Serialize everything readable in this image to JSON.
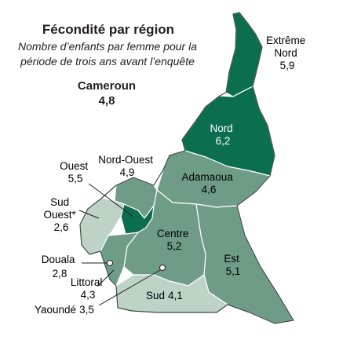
{
  "title": "Fécondité par région",
  "subtitle_line1": "Nombre d’enfants par femme pour la",
  "subtitle_line2": "période de trois ans avant l’enquête",
  "national": {
    "name": "Cameroun",
    "value": "4,8"
  },
  "colors": {
    "dark": "#0b6e4f",
    "medium": "#6f9c87",
    "light": "#bdd3c6",
    "stroke": "#ffffff",
    "outline": "#3b4a44"
  },
  "regions": [
    {
      "id": "extreme-nord",
      "name_line1": "Extrême",
      "name_line2": "Nord",
      "value": "5,9"
    },
    {
      "id": "nord",
      "name_line1": "Nord",
      "value": "6,2"
    },
    {
      "id": "adamaoua",
      "name_line1": "Adamaoua",
      "value": "4,6"
    },
    {
      "id": "nord-ouest",
      "name_line1": "Nord-Ouest",
      "value": "4,9"
    },
    {
      "id": "ouest",
      "name_line1": "Ouest",
      "value": "5,5"
    },
    {
      "id": "sud-ouest",
      "name_line1": "Sud",
      "name_line2": "Ouest*",
      "value": "2,6"
    },
    {
      "id": "centre",
      "name_line1": "Centre",
      "value": "5,2"
    },
    {
      "id": "est",
      "name_line1": "Est",
      "value": "5,1"
    },
    {
      "id": "douala",
      "name_line1": "Douala",
      "value": "2,8"
    },
    {
      "id": "littoral",
      "name_line1": "Littoral",
      "value": "4,3"
    },
    {
      "id": "yaounde",
      "name_line1": "Yaoundé",
      "value": "3,5"
    },
    {
      "id": "sud",
      "name_line1": "Sud",
      "value": "4,1"
    }
  ]
}
